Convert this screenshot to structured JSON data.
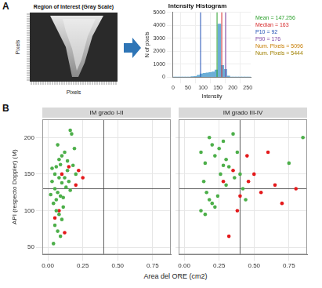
{
  "panel_labels": [
    "A",
    "B"
  ],
  "image_panel": {
    "title": "Region of Interest (Gray Scale)",
    "xlabel": "Pixels",
    "ylabel": "Pixels"
  },
  "facet_axes": {
    "xlabel": "Area del ORE (cm2)",
    "ylabel": "API (respecto Doppler) (M)"
  },
  "chart_data": [
    {
      "type": "histogram",
      "title": "Intensity Histogram",
      "xlabel": "Intensity",
      "ylabel": "N of pixels",
      "bins": [
        0,
        10,
        20,
        30,
        40,
        50,
        60,
        70,
        80,
        90,
        100,
        110,
        120,
        130,
        140,
        150,
        160,
        170,
        180,
        190,
        200,
        210,
        220,
        230,
        240,
        250,
        260
      ],
      "counts": [
        0,
        0,
        0,
        0,
        0,
        0,
        20,
        60,
        150,
        250,
        300,
        320,
        350,
        400,
        550,
        4100,
        900,
        600,
        80,
        0,
        0,
        0,
        0,
        0,
        0,
        0
      ],
      "color": "#6baed6",
      "xlim": [
        0,
        260
      ],
      "xticks": [
        0,
        50,
        100,
        150,
        200,
        250
      ],
      "ylim": [
        0,
        5000
      ],
      "yticks": [
        0,
        1000,
        2000,
        3000,
        4000,
        5000
      ],
      "grid": true,
      "markers": [
        {
          "label": "Mean = 147.256",
          "value": 147.256,
          "color": "#2ca02c"
        },
        {
          "label": "Median = 163",
          "value": 163,
          "color": "#d62728"
        },
        {
          "label": "P10 = 92",
          "value": 92,
          "color": "#1f4fb4"
        },
        {
          "label": "P90 = 176",
          "value": 176,
          "color": "#7b3fa0"
        }
      ],
      "annotations": [
        {
          "text": "Num. Pixels = 5096",
          "color": "#c77c00"
        },
        {
          "text": "Num. Pixels = 5444",
          "color": "#a08000"
        }
      ]
    },
    {
      "type": "scatter",
      "title": "IM grado I-II",
      "xlim": [
        -0.04,
        0.88
      ],
      "xticks": [
        {
          "value": 0,
          "label": "0.00"
        },
        0.25,
        {
          "value": 0.5,
          "label": "0.50"
        },
        0.75
      ],
      "ylim": [
        40,
        225
      ],
      "yticks": [
        50,
        100,
        150,
        200
      ],
      "grid": true,
      "tick_labels": true,
      "reference_lines": {
        "x": 0.4,
        "y": 130
      },
      "series": [
        {
          "color": "#4daf4a",
          "marker": "circle",
          "x": [
            0.03,
            0.05,
            0.06,
            0.08,
            0.1,
            0.12,
            0.14,
            0.16,
            0.17,
            0.05,
            0.07,
            0.09,
            0.11,
            0.04,
            0.06,
            0.08,
            0.1,
            0.05,
            0.07,
            0.09,
            0.04,
            0.12,
            0.14,
            0.18,
            0.2,
            0.03,
            0.08,
            0.1,
            0.13,
            0.06,
            0.11,
            0.15,
            0.19,
            0.02,
            0.09,
            0.16,
            0.07
          ],
          "y": [
            140,
            150,
            160,
            170,
            175,
            180,
            168,
            210,
            205,
            130,
            125,
            120,
            118,
            110,
            100,
            95,
            88,
            80,
            72,
            65,
            55,
            145,
            155,
            162,
            150,
            158,
            145,
            138,
            132,
            115,
            105,
            140,
            185,
            122,
            163,
            128,
            190
          ]
        },
        {
          "color": "#e41a1c",
          "marker": "circle",
          "x": [
            0.08,
            0.12,
            0.15,
            0.2,
            0.22,
            0.25,
            0.1,
            0.05
          ],
          "y": [
            100,
            70,
            160,
            135,
            155,
            145,
            150,
            90
          ]
        }
      ]
    },
    {
      "type": "scatter",
      "title": "IM grado III-IV",
      "xlim": [
        -0.04,
        0.88
      ],
      "xticks": [
        {
          "value": 0,
          "label": "0.00"
        },
        0.25,
        {
          "value": 0.5,
          "label": "0.50"
        },
        0.75
      ],
      "ylim": [
        40,
        225
      ],
      "yticks": [
        50,
        100,
        150,
        200
      ],
      "grid": true,
      "tick_labels": "x",
      "reference_lines": {
        "x": 0.4,
        "y": 130
      },
      "series": [
        {
          "color": "#4daf4a",
          "marker": "circle",
          "x": [
            0.12,
            0.15,
            0.18,
            0.2,
            0.22,
            0.25,
            0.28,
            0.3,
            0.14,
            0.16,
            0.18,
            0.2,
            0.12,
            0.15,
            0.22,
            0.26,
            0.32,
            0.35,
            0.38,
            0.4,
            0.42,
            0.44,
            0.24,
            0.3,
            0.36,
            0.28,
            0.85,
            0.75
          ],
          "y": [
            180,
            165,
            200,
            190,
            175,
            185,
            195,
            170,
            140,
            125,
            115,
            110,
            100,
            95,
            105,
            150,
            160,
            205,
            180,
            150,
            130,
            115,
            120,
            135,
            145,
            162,
            200,
            165
          ]
        },
        {
          "color": "#e41a1c",
          "marker": "circle",
          "x": [
            0.28,
            0.35,
            0.4,
            0.45,
            0.5,
            0.55,
            0.6,
            0.65,
            0.7,
            0.8,
            0.32,
            0.46,
            0.38
          ],
          "y": [
            140,
            155,
            120,
            175,
            150,
            125,
            180,
            135,
            110,
            130,
            65,
            140,
            100
          ]
        }
      ]
    }
  ]
}
